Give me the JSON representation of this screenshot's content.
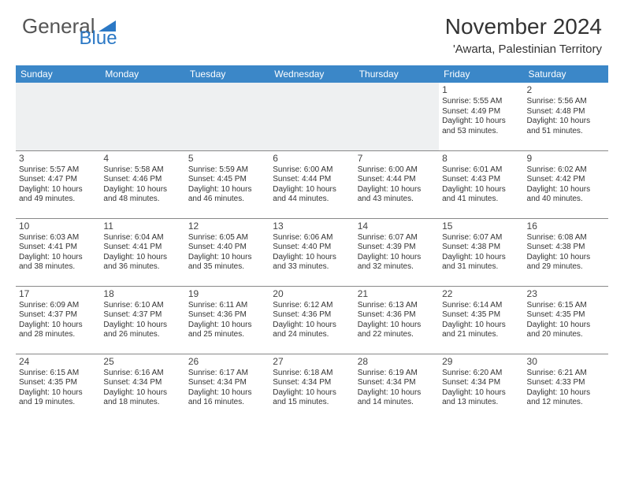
{
  "logo": {
    "text1": "General",
    "text2": "Blue"
  },
  "title": "November 2024",
  "location": "'Awarta, Palestinian Territory",
  "colors": {
    "header_bg": "#3b87c8",
    "header_text": "#ffffff",
    "border": "#888888",
    "text": "#333333",
    "logo_gray": "#555555",
    "logo_blue": "#2b78c5",
    "empty_bg": "#eef0f1"
  },
  "day_headers": [
    "Sunday",
    "Monday",
    "Tuesday",
    "Wednesday",
    "Thursday",
    "Friday",
    "Saturday"
  ],
  "weeks": [
    [
      null,
      null,
      null,
      null,
      null,
      {
        "n": "1",
        "sr": "5:55 AM",
        "ss": "4:49 PM",
        "dl": "10 hours and 53 minutes."
      },
      {
        "n": "2",
        "sr": "5:56 AM",
        "ss": "4:48 PM",
        "dl": "10 hours and 51 minutes."
      }
    ],
    [
      {
        "n": "3",
        "sr": "5:57 AM",
        "ss": "4:47 PM",
        "dl": "10 hours and 49 minutes."
      },
      {
        "n": "4",
        "sr": "5:58 AM",
        "ss": "4:46 PM",
        "dl": "10 hours and 48 minutes."
      },
      {
        "n": "5",
        "sr": "5:59 AM",
        "ss": "4:45 PM",
        "dl": "10 hours and 46 minutes."
      },
      {
        "n": "6",
        "sr": "6:00 AM",
        "ss": "4:44 PM",
        "dl": "10 hours and 44 minutes."
      },
      {
        "n": "7",
        "sr": "6:00 AM",
        "ss": "4:44 PM",
        "dl": "10 hours and 43 minutes."
      },
      {
        "n": "8",
        "sr": "6:01 AM",
        "ss": "4:43 PM",
        "dl": "10 hours and 41 minutes."
      },
      {
        "n": "9",
        "sr": "6:02 AM",
        "ss": "4:42 PM",
        "dl": "10 hours and 40 minutes."
      }
    ],
    [
      {
        "n": "10",
        "sr": "6:03 AM",
        "ss": "4:41 PM",
        "dl": "10 hours and 38 minutes."
      },
      {
        "n": "11",
        "sr": "6:04 AM",
        "ss": "4:41 PM",
        "dl": "10 hours and 36 minutes."
      },
      {
        "n": "12",
        "sr": "6:05 AM",
        "ss": "4:40 PM",
        "dl": "10 hours and 35 minutes."
      },
      {
        "n": "13",
        "sr": "6:06 AM",
        "ss": "4:40 PM",
        "dl": "10 hours and 33 minutes."
      },
      {
        "n": "14",
        "sr": "6:07 AM",
        "ss": "4:39 PM",
        "dl": "10 hours and 32 minutes."
      },
      {
        "n": "15",
        "sr": "6:07 AM",
        "ss": "4:38 PM",
        "dl": "10 hours and 31 minutes."
      },
      {
        "n": "16",
        "sr": "6:08 AM",
        "ss": "4:38 PM",
        "dl": "10 hours and 29 minutes."
      }
    ],
    [
      {
        "n": "17",
        "sr": "6:09 AM",
        "ss": "4:37 PM",
        "dl": "10 hours and 28 minutes."
      },
      {
        "n": "18",
        "sr": "6:10 AM",
        "ss": "4:37 PM",
        "dl": "10 hours and 26 minutes."
      },
      {
        "n": "19",
        "sr": "6:11 AM",
        "ss": "4:36 PM",
        "dl": "10 hours and 25 minutes."
      },
      {
        "n": "20",
        "sr": "6:12 AM",
        "ss": "4:36 PM",
        "dl": "10 hours and 24 minutes."
      },
      {
        "n": "21",
        "sr": "6:13 AM",
        "ss": "4:36 PM",
        "dl": "10 hours and 22 minutes."
      },
      {
        "n": "22",
        "sr": "6:14 AM",
        "ss": "4:35 PM",
        "dl": "10 hours and 21 minutes."
      },
      {
        "n": "23",
        "sr": "6:15 AM",
        "ss": "4:35 PM",
        "dl": "10 hours and 20 minutes."
      }
    ],
    [
      {
        "n": "24",
        "sr": "6:15 AM",
        "ss": "4:35 PM",
        "dl": "10 hours and 19 minutes."
      },
      {
        "n": "25",
        "sr": "6:16 AM",
        "ss": "4:34 PM",
        "dl": "10 hours and 18 minutes."
      },
      {
        "n": "26",
        "sr": "6:17 AM",
        "ss": "4:34 PM",
        "dl": "10 hours and 16 minutes."
      },
      {
        "n": "27",
        "sr": "6:18 AM",
        "ss": "4:34 PM",
        "dl": "10 hours and 15 minutes."
      },
      {
        "n": "28",
        "sr": "6:19 AM",
        "ss": "4:34 PM",
        "dl": "10 hours and 14 minutes."
      },
      {
        "n": "29",
        "sr": "6:20 AM",
        "ss": "4:34 PM",
        "dl": "10 hours and 13 minutes."
      },
      {
        "n": "30",
        "sr": "6:21 AM",
        "ss": "4:33 PM",
        "dl": "10 hours and 12 minutes."
      }
    ]
  ],
  "labels": {
    "sunrise": "Sunrise:",
    "sunset": "Sunset:",
    "daylight": "Daylight:"
  }
}
